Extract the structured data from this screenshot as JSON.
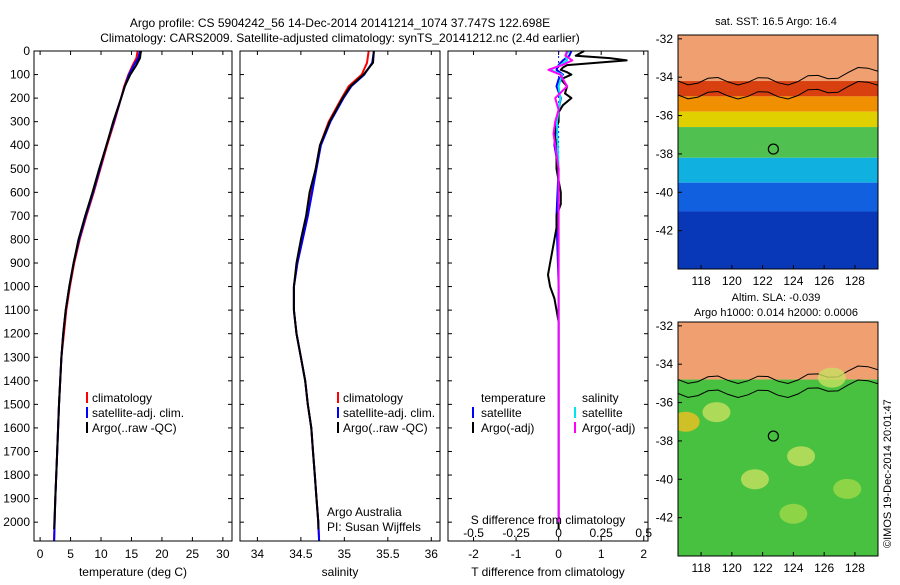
{
  "header": {
    "line1": "Argo profile: CS 5904242_56 14-Dec-2014 20141214_1074 37.747S 122.698E",
    "line2": "Climatology: CARS2009. Satellite-adjusted climatology: synTS_20141212.nc (2.4d earlier)"
  },
  "colors": {
    "climatology": "#ff0000",
    "satellite": "#0000ff",
    "argo": "#000000",
    "sat_cyan": "#00e5ee",
    "argo_magenta": "#ff00ff"
  },
  "chart_data": [
    {
      "id": "temperature",
      "type": "line",
      "xlabel": "temperature (deg C)",
      "ylabel": "",
      "xlim": [
        -1,
        31.5
      ],
      "ylim": [
        2080,
        0
      ],
      "xticks": [
        0,
        5,
        10,
        15,
        20,
        25,
        30
      ],
      "yticks": [
        0,
        100,
        200,
        300,
        400,
        500,
        600,
        700,
        800,
        900,
        1000,
        1100,
        1200,
        1300,
        1400,
        1500,
        1600,
        1700,
        1800,
        1900,
        2000
      ],
      "legend": [
        "climatology",
        "satellite-adj. clim.",
        "Argo(..raw -QC)"
      ],
      "series": [
        {
          "name": "climatology",
          "color": "#ff0000",
          "depth": [
            0,
            30,
            60,
            100,
            150,
            200,
            300,
            400,
            500,
            600,
            700,
            800,
            900,
            1000,
            1100,
            1200,
            1300,
            1500,
            1700,
            1900,
            2080
          ],
          "values": [
            16.0,
            15.8,
            15.2,
            14.5,
            13.8,
            13.3,
            12.2,
            11.0,
            9.9,
            8.8,
            7.6,
            6.5,
            5.6,
            4.9,
            4.3,
            3.9,
            3.5,
            3.1,
            2.8,
            2.5,
            2.3
          ]
        },
        {
          "name": "satellite-adj. clim.",
          "color": "#0000ff",
          "depth": [
            0,
            30,
            60,
            100,
            150,
            200,
            300,
            400,
            500,
            600,
            700,
            800,
            900,
            1000,
            1100,
            1200,
            1300,
            1500,
            1700,
            1900,
            2080
          ],
          "values": [
            16.4,
            16.1,
            15.4,
            14.6,
            13.9,
            13.3,
            12.1,
            10.9,
            9.8,
            8.7,
            7.5,
            6.4,
            5.5,
            4.8,
            4.2,
            3.8,
            3.5,
            3.1,
            2.8,
            2.5,
            2.3
          ]
        },
        {
          "name": "Argo(..raw -QC)",
          "color": "#000000",
          "depth": [
            0,
            10,
            30,
            60,
            100,
            150,
            200,
            300,
            400,
            500,
            600,
            700,
            800,
            900,
            1000,
            1100,
            1200,
            1300,
            1500,
            1700,
            1900,
            2030
          ],
          "values": [
            16.6,
            16.5,
            16.4,
            15.8,
            14.8,
            13.9,
            13.3,
            12.0,
            10.9,
            9.7,
            8.6,
            7.4,
            6.3,
            5.5,
            4.8,
            4.2,
            3.8,
            3.5,
            3.1,
            2.8,
            2.5,
            2.3
          ]
        }
      ]
    },
    {
      "id": "salinity",
      "type": "line",
      "xlabel": "salinity",
      "xlim": [
        33.8,
        36.1
      ],
      "ylim": [
        2080,
        0
      ],
      "xticks": [
        34,
        34.5,
        35,
        35.5,
        36
      ],
      "xticklabels": [
        "34",
        "34.5",
        "35",
        "35.5",
        "36"
      ],
      "yticks": [
        0,
        100,
        200,
        300,
        400,
        500,
        600,
        700,
        800,
        900,
        1000,
        1100,
        1200,
        1300,
        1400,
        1500,
        1600,
        1700,
        1800,
        1900,
        2000
      ],
      "legend": [
        "climatology",
        "satellite-adj. clim.",
        "Argo(..raw -QC)"
      ],
      "annotation": [
        "Argo Australia",
        "PI: Susan Wijffels"
      ],
      "series": [
        {
          "name": "climatology",
          "color": "#ff0000",
          "depth": [
            0,
            50,
            100,
            150,
            200,
            300,
            400,
            500,
            600,
            700,
            800,
            900,
            1000,
            1100,
            1200,
            1300,
            1400,
            1500,
            1600,
            1700,
            1800,
            1900,
            2000,
            2080
          ],
          "values": [
            35.28,
            35.26,
            35.2,
            35.05,
            34.97,
            34.82,
            34.72,
            34.67,
            34.62,
            34.58,
            34.52,
            34.46,
            34.42,
            34.42,
            34.45,
            34.5,
            34.55,
            34.58,
            34.62,
            34.64,
            34.66,
            34.68,
            34.7,
            34.71
          ]
        },
        {
          "name": "satellite-adj. clim.",
          "color": "#0000ff",
          "depth": [
            0,
            50,
            100,
            150,
            200,
            300,
            400,
            500,
            600,
            700,
            800,
            900,
            1000,
            1100,
            1200,
            1300,
            1400,
            1500,
            1600,
            1700,
            1800,
            1900,
            2000,
            2080
          ],
          "values": [
            35.34,
            35.32,
            35.23,
            35.08,
            34.99,
            34.84,
            34.73,
            34.68,
            34.63,
            34.58,
            34.52,
            34.46,
            34.42,
            34.42,
            34.45,
            34.5,
            34.55,
            34.58,
            34.62,
            34.64,
            34.66,
            34.68,
            34.7,
            34.71
          ]
        },
        {
          "name": "Argo(..raw -QC)",
          "color": "#000000",
          "depth": [
            0,
            50,
            100,
            150,
            200,
            300,
            400,
            500,
            600,
            700,
            800,
            900,
            1000,
            1100,
            1200,
            1300,
            1400,
            1500,
            1600,
            1700,
            1800,
            1900,
            2000,
            2030
          ],
          "values": [
            35.34,
            35.33,
            35.22,
            35.07,
            34.98,
            34.83,
            34.72,
            34.67,
            34.6,
            34.56,
            34.5,
            34.45,
            34.42,
            34.42,
            34.45,
            34.5,
            34.55,
            34.58,
            34.62,
            34.64,
            34.66,
            34.68,
            34.7,
            34.7
          ]
        }
      ]
    },
    {
      "id": "difference",
      "type": "line",
      "xlabel": "T difference from climatology",
      "xlabel_top": "S difference from climatology",
      "xlim": [
        -2.6,
        2.1
      ],
      "ylim": [
        2080,
        0
      ],
      "xticks": [
        -2,
        -1,
        0,
        1,
        2
      ],
      "top_ticks": [
        -0.5,
        -0.25,
        0,
        0.25,
        0.5
      ],
      "top_ticklabels": [
        "-0.5",
        "-0.25",
        "0",
        "0.25",
        "0.5"
      ],
      "s_scale": 4,
      "yticks": [
        0,
        100,
        200,
        300,
        400,
        500,
        600,
        700,
        800,
        900,
        1000,
        1100,
        1200,
        1300,
        1400,
        1500,
        1600,
        1700,
        1800,
        1900,
        2000
      ],
      "legend_headers": [
        "temperature",
        "salinity"
      ],
      "legend": [
        "satellite",
        "Argo(-adj)",
        "satellite",
        "Argo(-adj)"
      ],
      "series": [
        {
          "name": "T satellite",
          "color": "#0000ff",
          "depth": [
            0,
            20,
            40,
            60,
            80,
            100,
            120,
            150,
            200,
            250,
            300,
            400,
            500,
            700,
            1000,
            1300,
            1600,
            2000
          ],
          "values": [
            0.3,
            0.25,
            0.1,
            0.0,
            -0.05,
            0.1,
            0.0,
            -0.05,
            0.05,
            0.0,
            -0.05,
            -0.1,
            0.0,
            -0.05,
            0.0,
            0.0,
            0.0,
            0.0
          ]
        },
        {
          "name": "T Argo(-adj)",
          "color": "#000000",
          "depth": [
            0,
            10,
            20,
            30,
            40,
            50,
            60,
            70,
            80,
            90,
            100,
            120,
            150,
            180,
            200,
            230,
            260,
            300,
            350,
            400,
            450,
            500,
            550,
            600,
            650,
            700,
            750,
            800,
            850,
            900,
            950,
            1000,
            1050,
            1100,
            1150,
            1200,
            1300,
            1400,
            1600,
            1800,
            2030
          ],
          "values": [
            0.6,
            0.5,
            0.4,
            1.2,
            1.6,
            0.9,
            0.2,
            0.1,
            0.05,
            0.2,
            0.3,
            0.05,
            0.2,
            0.15,
            0.3,
            0.1,
            0.0,
            0.0,
            -0.1,
            -0.05,
            -0.05,
            -0.05,
            0.0,
            0.05,
            0.05,
            -0.05,
            -0.05,
            -0.1,
            -0.15,
            -0.2,
            -0.25,
            -0.2,
            -0.1,
            -0.05,
            0.0,
            0.0,
            0.0,
            0.0,
            0.0,
            0.0,
            0.0
          ]
        },
        {
          "name": "S satellite",
          "color": "#00e5ee",
          "depth": [
            0,
            20,
            40,
            60,
            80,
            100,
            150,
            200,
            300,
            500,
            700,
            1000,
            1300,
            1600,
            2000
          ],
          "values": [
            0.06,
            0.04,
            0.05,
            0.01,
            -0.05,
            0.02,
            0.0,
            0.01,
            -0.01,
            0.0,
            0.0,
            0.0,
            0.0,
            0.0,
            0.0
          ]
        },
        {
          "name": "S Argo(-adj)",
          "color": "#ff00ff",
          "depth": [
            0,
            20,
            40,
            60,
            80,
            100,
            150,
            200,
            250,
            300,
            350,
            400,
            500,
            700,
            1000,
            1300,
            1600,
            2000
          ],
          "values": [
            0.05,
            0.04,
            0.08,
            0.02,
            -0.06,
            0.01,
            0.05,
            -0.02,
            0.0,
            -0.02,
            -0.03,
            -0.02,
            0.0,
            0.0,
            0.0,
            0.0,
            0.0,
            0.0
          ]
        }
      ]
    },
    {
      "id": "sst_map",
      "type": "heatmap",
      "title": "sat. SST: 16.5 Argo: 16.4",
      "xlim": [
        116.5,
        129.5
      ],
      "ylim": [
        -44,
        -31.8
      ],
      "xticks": [
        118,
        120,
        122,
        124,
        126,
        128
      ],
      "yticks": [
        -32,
        -34,
        -36,
        -38,
        -40,
        -42
      ],
      "marker": {
        "lon": 122.698,
        "lat": -37.747
      },
      "color_bands": [
        {
          "lat_from": -31.8,
          "lat_to": -34.2,
          "color": "#f0a070",
          "label": "land"
        },
        {
          "lat_from": -34.2,
          "lat_to": -35.0,
          "color": "#d84010"
        },
        {
          "lat_from": -35.0,
          "lat_to": -35.8,
          "color": "#f09000"
        },
        {
          "lat_from": -35.8,
          "lat_to": -36.6,
          "color": "#e0d000"
        },
        {
          "lat_from": -36.6,
          "lat_to": -38.2,
          "color": "#50c050"
        },
        {
          "lat_from": -38.2,
          "lat_to": -39.5,
          "color": "#10b0e0"
        },
        {
          "lat_from": -39.5,
          "lat_to": -41.0,
          "color": "#1060e0"
        },
        {
          "lat_from": -41.0,
          "lat_to": -44.0,
          "color": "#0838b8"
        }
      ]
    },
    {
      "id": "sla_map",
      "type": "heatmap",
      "title": "Altim. SLA: -0.039",
      "subtitle": "Argo h1000: 0.014 h2000: 0.0006",
      "xlim": [
        116.5,
        129.5
      ],
      "ylim": [
        -44,
        -31.8
      ],
      "xticks": [
        118,
        120,
        122,
        124,
        126,
        128
      ],
      "yticks": [
        -32,
        -34,
        -36,
        -38,
        -40,
        -42
      ],
      "marker": {
        "lon": 122.698,
        "lat": -37.747
      },
      "color_bands": [
        {
          "lat_from": -31.8,
          "lat_to": -34.8,
          "color": "#f0a070",
          "label": "land"
        },
        {
          "lat_from": -34.8,
          "lat_to": -44.0,
          "color": "#48c040"
        }
      ]
    }
  ],
  "watermark": "©IMOS 19-Dec-2014 20:01:47"
}
